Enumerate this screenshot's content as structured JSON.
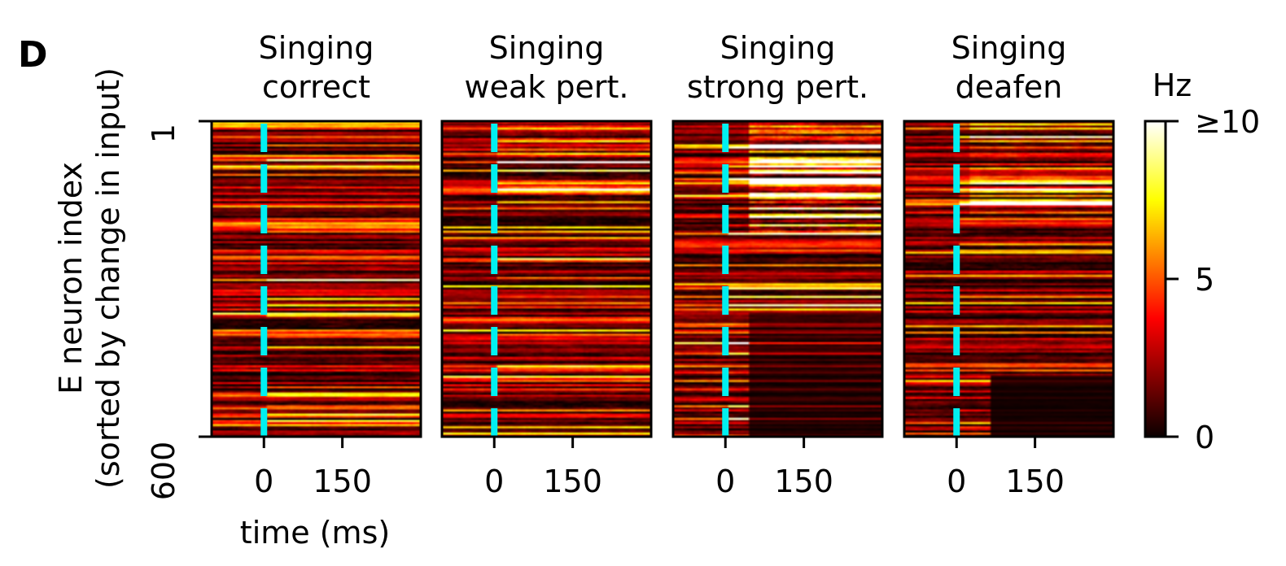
{
  "panel_letter": "D",
  "chart_data": {
    "type": "heatmap",
    "panels": [
      {
        "title_line1": "Singing",
        "title_line2": "correct"
      },
      {
        "title_line1": "Singing",
        "title_line2": "weak pert."
      },
      {
        "title_line1": "Singing",
        "title_line2": "strong pert."
      },
      {
        "title_line1": "Singing",
        "title_line2": "deafen"
      }
    ],
    "xlabel": "time (ms)",
    "ylabel_line1": "E neuron index",
    "ylabel_line2": "(sorted by change in input)",
    "xlim": [
      -100,
      300
    ],
    "xticks": [
      0,
      150
    ],
    "xtick_labels": [
      "0",
      "150"
    ],
    "ylim": [
      1,
      600
    ],
    "yticks": [
      1,
      600
    ],
    "ytick_labels": [
      "1",
      "600"
    ],
    "marker_line": {
      "x": 0,
      "style": "dashed",
      "color": "#00f0f0"
    },
    "colorbar": {
      "label": "Hz",
      "colormap": "hot",
      "range": [
        0,
        10
      ],
      "ticks": [
        0,
        5,
        10
      ],
      "tick_labels": [
        "0",
        "5",
        "≥10"
      ]
    }
  }
}
